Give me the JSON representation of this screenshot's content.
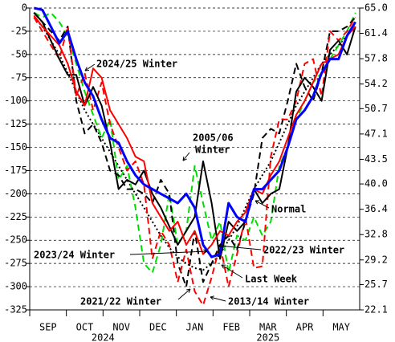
{
  "chart_data": {
    "type": "line",
    "months": [
      "SEP",
      "OCT",
      "NOV",
      "DEC",
      "JAN",
      "FEB",
      "MAR",
      "APR",
      "MAY"
    ],
    "years": [
      "2024",
      "2025"
    ],
    "ylim": [
      -325,
      0
    ],
    "yticks": [
      0,
      -25,
      -50,
      -75,
      -100,
      -125,
      -150,
      -175,
      -200,
      -225,
      -250,
      -275,
      -300,
      -325
    ],
    "y2lim": [
      22.1,
      65.0
    ],
    "y2ticks": [
      {
        "value": 65.0,
        "label": "65.0"
      },
      61.4,
      57.8,
      54.2,
      50.7,
      47.1,
      43.5,
      {
        "value": 40.0,
        "label": "40.0"
      },
      36.4,
      32.8,
      29.2,
      25.7,
      22.1
    ],
    "grid": true,
    "series": [
      {
        "color": "#000000",
        "style": "dotted",
        "values": [
          -10,
          -20,
          -35,
          -50,
          -70,
          -90,
          -110,
          -125,
          -140,
          -155,
          -170,
          -185,
          -200,
          -215,
          -230,
          -245,
          -258,
          -268,
          -275,
          -280,
          -282,
          -275,
          -265,
          -250,
          -235,
          -215,
          -195,
          -180,
          -165,
          -145,
          -125,
          -105,
          -90,
          -75,
          -60,
          -50,
          -40,
          -30,
          -20
        ]
      },
      {
        "color": "#00dd00",
        "style": "dashed",
        "values": [
          -5,
          -10,
          -5,
          -15,
          -30,
          -60,
          -90,
          -115,
          -140,
          -120,
          -185,
          -170,
          -215,
          -275,
          -285,
          -255,
          -200,
          -255,
          -240,
          -170,
          -210,
          -250,
          -230,
          -285,
          -245,
          -250,
          -225,
          -245,
          -230,
          -170,
          -150,
          -120,
          -100,
          -80,
          -70,
          -55,
          -40,
          -25,
          -5
        ]
      },
      {
        "color": "#000000",
        "style": "dashed",
        "values": [
          -5,
          -15,
          -25,
          -35,
          -20,
          -100,
          -135,
          -125,
          -145,
          -175,
          -180,
          -195,
          -195,
          -200,
          -210,
          -185,
          -200,
          -275,
          -300,
          -240,
          -295,
          -275,
          -255,
          -245,
          -260,
          -230,
          -200,
          -140,
          -130,
          -135,
          -100,
          -60,
          -85,
          -100,
          -70,
          -25,
          -25,
          -20,
          -10
        ]
      },
      {
        "color": "#ff0000",
        "style": "dashed",
        "values": [
          -10,
          -25,
          -40,
          -55,
          -20,
          -95,
          -70,
          -110,
          -80,
          -125,
          -150,
          -175,
          -165,
          -190,
          -270,
          -240,
          -255,
          -295,
          -260,
          -305,
          -320,
          -290,
          -255,
          -300,
          -265,
          -225,
          -280,
          -278,
          -160,
          -120,
          -120,
          -100,
          -60,
          -55,
          -95,
          -25,
          -35,
          -25,
          -10
        ]
      },
      {
        "color": "#000000",
        "style": "solid",
        "values": [
          -5,
          -15,
          -35,
          -55,
          -72,
          -72,
          -105,
          -85,
          -105,
          -145,
          -195,
          -185,
          -190,
          -175,
          -200,
          -215,
          -235,
          -255,
          -240,
          -225,
          -165,
          -210,
          -270,
          -230,
          -240,
          -230,
          -195,
          -210,
          -200,
          -195,
          -150,
          -90,
          -75,
          -85,
          -100,
          -45,
          -35,
          -50,
          -20
        ]
      },
      {
        "color": "#ff0000",
        "style": "solid",
        "values": [
          -8,
          -20,
          -30,
          -40,
          -60,
          -90,
          -105,
          -65,
          -75,
          -110,
          -125,
          -140,
          -160,
          -165,
          -210,
          -225,
          -240,
          -230,
          -255,
          -240,
          -265,
          -255,
          -240,
          -245,
          -230,
          -220,
          -195,
          -200,
          -180,
          -165,
          -140,
          -115,
          -100,
          -80,
          -60,
          -55,
          -50,
          -30,
          -20
        ]
      },
      {
        "color": "#0000ff",
        "style": "thick",
        "values": [
          0,
          -2,
          -20,
          -38,
          -25,
          -55,
          -80,
          -95,
          -120,
          -140,
          -145,
          -165,
          -180,
          -190,
          -195,
          -200,
          -205,
          -210,
          -200,
          -215,
          -255,
          -268,
          -265,
          -210,
          -225,
          -230,
          -195,
          -195,
          -185,
          -175,
          -150,
          -120,
          -110,
          -95,
          -70,
          -55,
          -55,
          -30,
          -15
        ]
      }
    ],
    "annotations": [
      {
        "lines": [
          "2024/25 Winter"
        ]
      },
      {
        "lines": [
          "2005/06",
          "Winter"
        ]
      },
      {
        "lines": [
          "Normal"
        ]
      },
      {
        "lines": [
          "2022/23 Winter"
        ]
      },
      {
        "lines": [
          "2023/24 Winter"
        ]
      },
      {
        "lines": [
          "Last Week"
        ]
      },
      {
        "lines": [
          "2021/22 Winter"
        ]
      },
      {
        "lines": [
          "2013/14 Winter"
        ]
      }
    ]
  }
}
